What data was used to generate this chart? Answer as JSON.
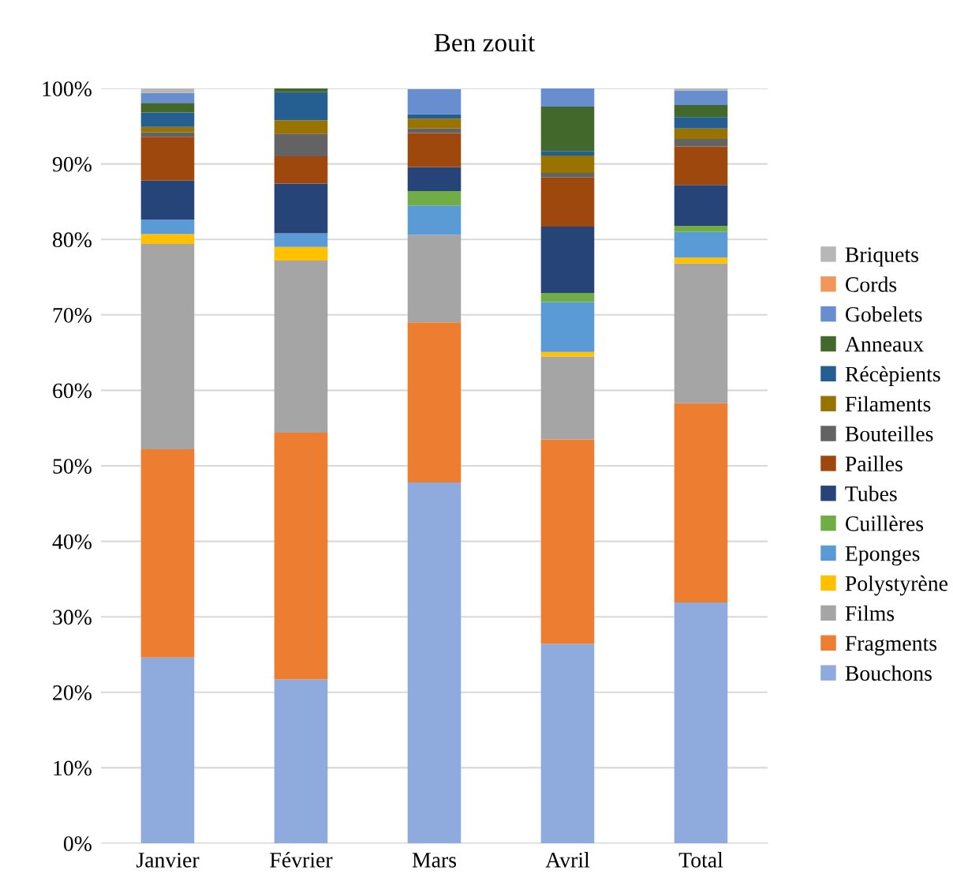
{
  "chart_data": {
    "type": "bar",
    "title": "Ben zouit",
    "stacked": true,
    "categories": [
      "Janvier",
      "Février",
      "Mars",
      "Avril",
      "Total"
    ],
    "ylim": [
      0,
      100
    ],
    "yticks": [
      {
        "value": 0,
        "label": "0%"
      },
      {
        "value": 10,
        "label": "10%"
      },
      {
        "value": 20,
        "label": "20%"
      },
      {
        "value": 30,
        "label": "30%"
      },
      {
        "value": 40,
        "label": "40%"
      },
      {
        "value": 50,
        "label": "50%"
      },
      {
        "value": 60,
        "label": "60%"
      },
      {
        "value": 70,
        "label": "70%"
      },
      {
        "value": 80,
        "label": "80%"
      },
      {
        "value": 90,
        "label": "90%"
      },
      {
        "value": 100,
        "label": "100%"
      }
    ],
    "grid": "y",
    "legend": "right",
    "series": [
      {
        "name": "Bouchons",
        "color": "#8faadc",
        "values": [
          24.6,
          21.7,
          47.8,
          26.4,
          31.9
        ]
      },
      {
        "name": "Fragments",
        "color": "#ed7d31",
        "values": [
          27.6,
          32.7,
          21.2,
          27.1,
          26.4
        ]
      },
      {
        "name": "Films",
        "color": "#a5a5a5",
        "values": [
          27.2,
          22.8,
          11.6,
          11.0,
          18.5
        ]
      },
      {
        "name": "Polystyrène",
        "color": "#ffc000",
        "values": [
          1.3,
          1.8,
          0,
          0.6,
          0.8
        ]
      },
      {
        "name": "Eponges",
        "color": "#5b9bd5",
        "values": [
          1.9,
          1.8,
          3.9,
          6.6,
          3.4
        ]
      },
      {
        "name": "Cuillères",
        "color": "#70ad47",
        "values": [
          0,
          0,
          1.9,
          1.2,
          0.8
        ]
      },
      {
        "name": "Tubes",
        "color": "#264478",
        "values": [
          5.2,
          6.6,
          3.2,
          8.8,
          5.4
        ]
      },
      {
        "name": "Pailles",
        "color": "#9e480e",
        "values": [
          5.8,
          3.6,
          4.5,
          6.5,
          5.1
        ]
      },
      {
        "name": "Bouteilles",
        "color": "#636363",
        "values": [
          0.6,
          3.0,
          0.6,
          0.6,
          1.0
        ]
      },
      {
        "name": "Filaments",
        "color": "#997300",
        "values": [
          0.7,
          1.8,
          1.3,
          2.3,
          1.4
        ]
      },
      {
        "name": "Récèpients",
        "color": "#255e91",
        "values": [
          1.9,
          3.7,
          0.6,
          0.6,
          1.5
        ]
      },
      {
        "name": "Anneaux",
        "color": "#43682b",
        "values": [
          1.3,
          0.6,
          0,
          5.9,
          1.6
        ]
      },
      {
        "name": "Gobelets",
        "color": "#698ed0",
        "values": [
          1.3,
          0,
          3.3,
          2.4,
          1.9
        ]
      },
      {
        "name": "Cords",
        "color": "#f1975a",
        "values": [
          0,
          0,
          0,
          0,
          0
        ]
      },
      {
        "name": "Briquets",
        "color": "#b7b7b7",
        "values": [
          0.7,
          0,
          0,
          0,
          0.3
        ]
      }
    ]
  }
}
